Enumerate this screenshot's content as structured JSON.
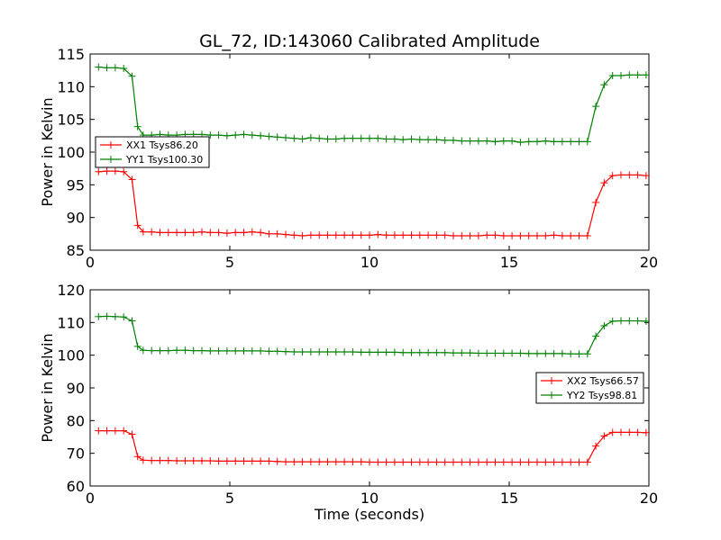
{
  "chart_data": [
    {
      "type": "line",
      "title": "GL_72, ID:143060 Calibrated Amplitude",
      "xlabel": "",
      "ylabel": "Power in Kelvin",
      "xlim": [
        0,
        20
      ],
      "ylim": [
        85,
        115
      ],
      "xticks": [
        "0",
        "5",
        "10",
        "15",
        "20"
      ],
      "yticks": [
        "85",
        "90",
        "95",
        "100",
        "105",
        "110",
        "115"
      ],
      "legend_position": "center-left",
      "grid": false,
      "x": [
        0.3,
        0.6,
        0.9,
        1.2,
        1.5,
        1.7,
        1.9,
        2.2,
        2.5,
        2.8,
        3.1,
        3.4,
        3.7,
        4.0,
        4.3,
        4.6,
        4.9,
        5.2,
        5.5,
        5.8,
        6.1,
        6.4,
        6.7,
        7.0,
        7.3,
        7.6,
        7.9,
        8.2,
        8.5,
        8.8,
        9.1,
        9.4,
        9.7,
        10.0,
        10.3,
        10.6,
        10.9,
        11.2,
        11.5,
        11.8,
        12.1,
        12.4,
        12.7,
        13.0,
        13.3,
        13.6,
        13.9,
        14.2,
        14.5,
        14.8,
        15.1,
        15.4,
        15.7,
        16.0,
        16.3,
        16.6,
        16.9,
        17.2,
        17.5,
        17.8,
        18.1,
        18.4,
        18.7,
        19.0,
        19.3,
        19.6,
        19.9
      ],
      "series": [
        {
          "name": "XX1 Tsys86.20",
          "color": "#ff0000",
          "values": [
            97.0,
            97.1,
            97.1,
            97.0,
            95.8,
            88.8,
            87.8,
            87.8,
            87.7,
            87.7,
            87.7,
            87.7,
            87.7,
            87.8,
            87.7,
            87.7,
            87.6,
            87.7,
            87.7,
            87.8,
            87.7,
            87.5,
            87.5,
            87.4,
            87.3,
            87.2,
            87.3,
            87.3,
            87.3,
            87.3,
            87.3,
            87.3,
            87.3,
            87.3,
            87.4,
            87.3,
            87.3,
            87.3,
            87.3,
            87.3,
            87.3,
            87.3,
            87.3,
            87.2,
            87.2,
            87.2,
            87.2,
            87.3,
            87.3,
            87.2,
            87.2,
            87.2,
            87.2,
            87.2,
            87.2,
            87.3,
            87.2,
            87.2,
            87.2,
            87.2,
            92.3,
            95.3,
            96.4,
            96.5,
            96.5,
            96.5,
            96.4
          ]
        },
        {
          "name": "YY1 Tsys100.30",
          "color": "#008000",
          "values": [
            113.0,
            112.9,
            112.9,
            112.8,
            111.6,
            103.9,
            102.6,
            102.6,
            102.7,
            102.6,
            102.6,
            102.7,
            102.7,
            102.7,
            102.6,
            102.6,
            102.5,
            102.6,
            102.7,
            102.6,
            102.5,
            102.4,
            102.3,
            102.2,
            102.1,
            102.0,
            102.2,
            102.1,
            102.0,
            102.0,
            102.1,
            102.1,
            102.1,
            102.1,
            102.1,
            102.0,
            102.0,
            101.9,
            102.0,
            101.9,
            101.9,
            101.9,
            101.8,
            101.8,
            101.7,
            101.7,
            101.7,
            101.7,
            101.6,
            101.7,
            101.7,
            101.5,
            101.6,
            101.6,
            101.7,
            101.6,
            101.6,
            101.6,
            101.6,
            101.6,
            107.0,
            110.3,
            111.7,
            111.7,
            111.8,
            111.8,
            111.8
          ]
        }
      ]
    },
    {
      "type": "line",
      "title": "",
      "xlabel": "Time (seconds)",
      "ylabel": "Power in Kelvin",
      "xlim": [
        0,
        20
      ],
      "ylim": [
        60,
        120
      ],
      "xticks": [
        "0",
        "5",
        "10",
        "15",
        "20"
      ],
      "yticks": [
        "60",
        "70",
        "80",
        "90",
        "100",
        "110",
        "120"
      ],
      "legend_position": "center-right",
      "grid": false,
      "x": [
        0.3,
        0.6,
        0.9,
        1.2,
        1.5,
        1.7,
        1.9,
        2.2,
        2.5,
        2.8,
        3.1,
        3.4,
        3.7,
        4.0,
        4.3,
        4.6,
        4.9,
        5.2,
        5.5,
        5.8,
        6.1,
        6.4,
        6.7,
        7.0,
        7.3,
        7.6,
        7.9,
        8.2,
        8.5,
        8.8,
        9.1,
        9.4,
        9.7,
        10.0,
        10.3,
        10.6,
        10.9,
        11.2,
        11.5,
        11.8,
        12.1,
        12.4,
        12.7,
        13.0,
        13.3,
        13.6,
        13.9,
        14.2,
        14.5,
        14.8,
        15.1,
        15.4,
        15.7,
        16.0,
        16.3,
        16.6,
        16.9,
        17.2,
        17.5,
        17.8,
        18.1,
        18.4,
        18.7,
        19.0,
        19.3,
        19.6,
        19.9
      ],
      "series": [
        {
          "name": "XX2 Tsys66.57",
          "color": "#ff0000",
          "values": [
            76.9,
            76.9,
            76.9,
            76.9,
            75.8,
            69.0,
            67.9,
            67.8,
            67.8,
            67.8,
            67.7,
            67.7,
            67.7,
            67.7,
            67.7,
            67.6,
            67.6,
            67.6,
            67.6,
            67.6,
            67.6,
            67.6,
            67.5,
            67.4,
            67.4,
            67.4,
            67.4,
            67.4,
            67.4,
            67.4,
            67.4,
            67.4,
            67.4,
            67.3,
            67.3,
            67.3,
            67.3,
            67.3,
            67.3,
            67.3,
            67.3,
            67.3,
            67.3,
            67.3,
            67.3,
            67.3,
            67.3,
            67.3,
            67.3,
            67.3,
            67.3,
            67.3,
            67.3,
            67.3,
            67.3,
            67.3,
            67.3,
            67.3,
            67.3,
            67.3,
            72.2,
            75.3,
            76.4,
            76.4,
            76.4,
            76.4,
            76.3
          ]
        },
        {
          "name": "YY2 Tsys98.81",
          "color": "#008000",
          "values": [
            111.8,
            111.9,
            111.8,
            111.7,
            110.5,
            102.7,
            101.5,
            101.4,
            101.4,
            101.4,
            101.5,
            101.5,
            101.4,
            101.4,
            101.3,
            101.3,
            101.3,
            101.3,
            101.3,
            101.3,
            101.3,
            101.2,
            101.2,
            101.1,
            101.0,
            101.0,
            101.0,
            101.0,
            101.0,
            101.0,
            101.0,
            101.0,
            100.9,
            100.9,
            100.9,
            100.9,
            100.9,
            100.8,
            100.8,
            100.8,
            100.8,
            100.8,
            100.8,
            100.7,
            100.7,
            100.7,
            100.6,
            100.6,
            100.6,
            100.6,
            100.6,
            100.6,
            100.5,
            100.5,
            100.5,
            100.5,
            100.5,
            100.4,
            100.4,
            100.4,
            105.8,
            109.0,
            110.4,
            110.5,
            110.5,
            110.5,
            110.4
          ]
        }
      ]
    }
  ]
}
